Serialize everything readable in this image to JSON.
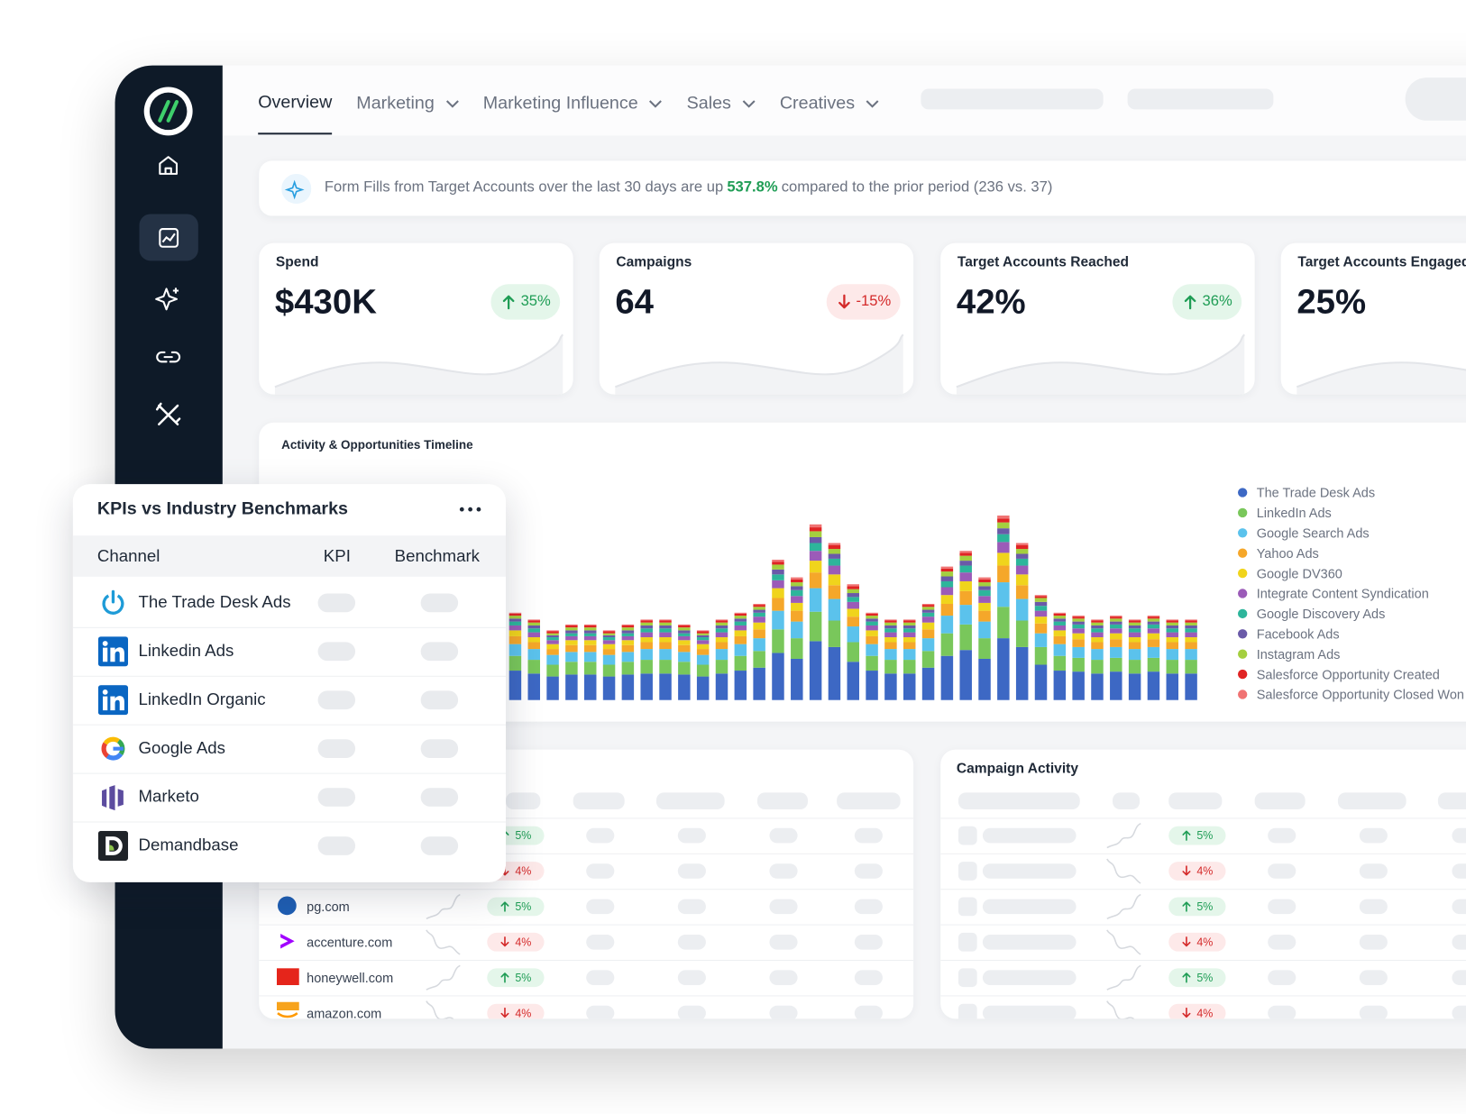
{
  "nav": {
    "tabs": [
      "Overview",
      "Marketing",
      "Marketing Influence",
      "Sales",
      "Creatives"
    ]
  },
  "banner": {
    "before": "Form Fills from Target Accounts over the last 30 days are up",
    "highlight": "537.8%",
    "after": "compared to the prior period (236 vs. 37)"
  },
  "kpis": [
    {
      "label": "Spend",
      "value": "$430K",
      "change": "35%",
      "direction": "up"
    },
    {
      "label": "Campaigns",
      "value": "64",
      "change": "-15%",
      "direction": "down"
    },
    {
      "label": "Target Accounts Reached",
      "value": "42%",
      "change": "36%",
      "direction": "up"
    },
    {
      "label": "Target Accounts Engaged",
      "value": "25%"
    }
  ],
  "chart_data": {
    "type": "bar",
    "stacked": true,
    "title": "Activity & Opportunities Timeline",
    "legend": "right",
    "series": [
      {
        "name": "The Trade Desk Ads",
        "color": "#3d68c4",
        "values": [
          30,
          27,
          24,
          26,
          26,
          24,
          26,
          27,
          27,
          26,
          24,
          27,
          30,
          33,
          48,
          42,
          60,
          54,
          39,
          30,
          27,
          27,
          33,
          45,
          51,
          42,
          63,
          54,
          36,
          30,
          29,
          27,
          29,
          27,
          29,
          27,
          27
        ]
      },
      {
        "name": "LinkedIn Ads",
        "color": "#79c75b",
        "values": [
          15,
          14,
          12,
          13,
          13,
          12,
          13,
          14,
          14,
          13,
          12,
          14,
          15,
          17,
          24,
          21,
          30,
          27,
          20,
          15,
          14,
          14,
          17,
          23,
          26,
          21,
          32,
          27,
          18,
          15,
          14,
          14,
          14,
          14,
          14,
          14,
          14
        ]
      },
      {
        "name": "Google Search Ads",
        "color": "#5bc2ec",
        "values": [
          12,
          11,
          10,
          10,
          10,
          10,
          10,
          11,
          11,
          10,
          10,
          11,
          12,
          13,
          19,
          17,
          24,
          22,
          16,
          12,
          11,
          11,
          13,
          18,
          20,
          17,
          25,
          22,
          14,
          12,
          11,
          11,
          11,
          11,
          11,
          11,
          11
        ]
      },
      {
        "name": "Yahoo Ads",
        "color": "#f5a72a",
        "values": [
          8,
          7,
          6,
          7,
          7,
          6,
          7,
          7,
          7,
          7,
          6,
          7,
          8,
          9,
          13,
          11,
          16,
          14,
          10,
          8,
          7,
          7,
          9,
          12,
          14,
          11,
          17,
          14,
          10,
          8,
          8,
          7,
          8,
          7,
          8,
          7,
          7
        ]
      },
      {
        "name": "Google DV360",
        "color": "#f0d41c",
        "values": [
          6,
          5,
          5,
          5,
          5,
          5,
          5,
          5,
          5,
          5,
          5,
          5,
          6,
          7,
          10,
          8,
          12,
          11,
          8,
          6,
          5,
          5,
          7,
          9,
          10,
          8,
          13,
          11,
          7,
          6,
          6,
          5,
          6,
          5,
          6,
          5,
          5
        ]
      },
      {
        "name": "Integrate Content Syndication",
        "color": "#9b5bb8",
        "values": [
          5,
          5,
          4,
          4,
          4,
          4,
          4,
          5,
          5,
          4,
          4,
          5,
          5,
          6,
          8,
          7,
          10,
          9,
          7,
          5,
          5,
          5,
          6,
          8,
          9,
          7,
          11,
          9,
          6,
          5,
          5,
          5,
          5,
          5,
          5,
          5,
          5
        ]
      },
      {
        "name": "Google Discovery Ads",
        "color": "#2db59b",
        "values": [
          4,
          4,
          3,
          3,
          3,
          3,
          3,
          4,
          4,
          3,
          3,
          4,
          4,
          4,
          6,
          6,
          8,
          7,
          5,
          4,
          4,
          4,
          4,
          6,
          7,
          6,
          8,
          7,
          5,
          4,
          4,
          4,
          4,
          4,
          4,
          4,
          4
        ]
      },
      {
        "name": "Facebook Ads",
        "color": "#6a5aa8",
        "values": [
          3,
          3,
          2,
          3,
          3,
          2,
          3,
          3,
          3,
          3,
          2,
          3,
          3,
          3,
          5,
          4,
          6,
          5,
          4,
          3,
          3,
          3,
          3,
          5,
          5,
          4,
          6,
          5,
          4,
          3,
          3,
          3,
          3,
          3,
          3,
          3,
          3
        ]
      },
      {
        "name": "Instagram Ads",
        "color": "#a4cf3f",
        "values": [
          3,
          3,
          2,
          3,
          3,
          2,
          3,
          3,
          3,
          3,
          2,
          3,
          3,
          3,
          5,
          4,
          6,
          5,
          4,
          3,
          3,
          3,
          3,
          5,
          5,
          4,
          6,
          5,
          4,
          3,
          3,
          3,
          3,
          3,
          3,
          3,
          3
        ]
      },
      {
        "name": "Salesforce Opportunity Created",
        "color": "#e02424",
        "values": [
          2,
          2,
          2,
          2,
          2,
          2,
          2,
          2,
          2,
          2,
          2,
          2,
          2,
          2,
          3,
          3,
          4,
          4,
          3,
          2,
          2,
          2,
          2,
          3,
          3,
          3,
          4,
          4,
          2,
          2,
          2,
          2,
          2,
          2,
          2,
          2,
          2
        ]
      },
      {
        "name": "Salesforce Opportunity Closed Won",
        "color": "#f07373",
        "values": [
          1,
          1,
          1,
          1,
          1,
          1,
          1,
          1,
          1,
          1,
          1,
          1,
          1,
          1,
          2,
          2,
          3,
          2,
          2,
          1,
          1,
          1,
          1,
          2,
          2,
          2,
          3,
          2,
          1,
          1,
          1,
          1,
          1,
          1,
          1,
          1,
          1
        ]
      }
    ]
  },
  "benchmarks": {
    "title": "KPIs vs Industry Benchmarks",
    "columns": [
      "Channel",
      "KPI",
      "Benchmark"
    ],
    "rows": [
      "The Trade Desk Ads",
      "Linkedin Ads",
      "LinkedIn Organic",
      "Google Ads",
      "Marketo",
      "Demandbase"
    ]
  },
  "accounts": {
    "rows": [
      {
        "change": "5%",
        "direction": "up"
      },
      {
        "change": "4%",
        "direction": "down"
      },
      {
        "domain": "pg.com",
        "change": "5%",
        "direction": "up"
      },
      {
        "domain": "accenture.com",
        "change": "4%",
        "direction": "down"
      },
      {
        "domain": "honeywell.com",
        "change": "5%",
        "direction": "up"
      },
      {
        "domain": "amazon.com",
        "change": "4%",
        "direction": "down"
      }
    ]
  },
  "campaign_activity": {
    "title": "Campaign Activity",
    "rows": [
      {
        "change": "5%",
        "direction": "up"
      },
      {
        "change": "4%",
        "direction": "down"
      },
      {
        "change": "5%",
        "direction": "up"
      },
      {
        "change": "4%",
        "direction": "down"
      },
      {
        "change": "5%",
        "direction": "up"
      },
      {
        "change": "4%",
        "direction": "down"
      }
    ]
  }
}
